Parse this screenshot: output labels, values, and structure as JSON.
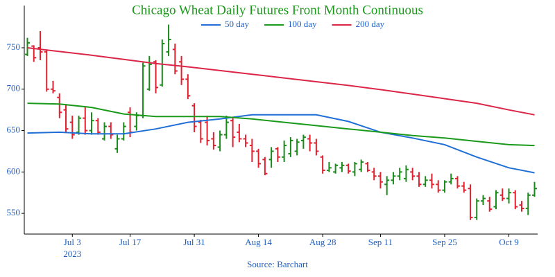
{
  "chart_data": {
    "type": "ohlc",
    "title": "Chicago Wheat Daily Futures Front Month Continuous",
    "source": "Source: Barchart",
    "x_year": "2023",
    "legend": "top",
    "up_color": "#1a8a1a",
    "down_color": "#e0202e",
    "ylim": [
      525,
      801
    ],
    "yticks": [
      550,
      600,
      650,
      700,
      750
    ],
    "xticks": [
      {
        "value": "2023-07-03",
        "label": "Jul 3"
      },
      {
        "value": "2023-07-17",
        "label": "Jul 17"
      },
      {
        "value": "2023-07-31",
        "label": "Jul 31"
      },
      {
        "value": "2023-08-14",
        "label": "Aug 14"
      },
      {
        "value": "2023-08-28",
        "label": "Aug 28"
      },
      {
        "value": "2023-09-11",
        "label": "Sep 11"
      },
      {
        "value": "2023-09-25",
        "label": "Sep 25"
      },
      {
        "value": "2023-10-09",
        "label": "Oct 9"
      }
    ],
    "x": [
      "2023-06-22",
      "2023-06-23",
      "2023-06-26",
      "2023-06-27",
      "2023-06-28",
      "2023-06-29",
      "2023-06-30",
      "2023-07-03",
      "2023-07-05",
      "2023-07-06",
      "2023-07-07",
      "2023-07-10",
      "2023-07-11",
      "2023-07-12",
      "2023-07-13",
      "2023-07-14",
      "2023-07-17",
      "2023-07-18",
      "2023-07-19",
      "2023-07-20",
      "2023-07-21",
      "2023-07-24",
      "2023-07-25",
      "2023-07-26",
      "2023-07-27",
      "2023-07-28",
      "2023-07-31",
      "2023-08-01",
      "2023-08-02",
      "2023-08-03",
      "2023-08-04",
      "2023-08-07",
      "2023-08-08",
      "2023-08-09",
      "2023-08-10",
      "2023-08-11",
      "2023-08-14",
      "2023-08-15",
      "2023-08-16",
      "2023-08-17",
      "2023-08-18",
      "2023-08-21",
      "2023-08-22",
      "2023-08-23",
      "2023-08-24",
      "2023-08-25",
      "2023-08-28",
      "2023-08-29",
      "2023-08-30",
      "2023-08-31",
      "2023-09-01",
      "2023-09-05",
      "2023-09-06",
      "2023-09-07",
      "2023-09-08",
      "2023-09-11",
      "2023-09-12",
      "2023-09-13",
      "2023-09-14",
      "2023-09-15",
      "2023-09-18",
      "2023-09-19",
      "2023-09-20",
      "2023-09-21",
      "2023-09-22",
      "2023-09-25",
      "2023-09-26",
      "2023-09-27",
      "2023-09-28",
      "2023-09-29",
      "2023-10-02",
      "2023-10-03",
      "2023-10-04",
      "2023-10-05",
      "2023-10-06",
      "2023-10-09",
      "2023-10-10",
      "2023-10-11",
      "2023-10-12",
      "2023-10-13"
    ],
    "open": [
      742,
      752,
      750,
      745,
      700,
      690,
      675,
      660,
      648,
      665,
      650,
      662,
      640,
      655,
      628,
      640,
      672,
      655,
      668,
      700,
      733,
      705,
      745,
      748,
      733,
      712,
      680,
      660,
      660,
      640,
      630,
      645,
      662,
      648,
      640,
      632,
      625,
      615,
      615,
      628,
      618,
      622,
      625,
      638,
      640,
      635,
      618,
      602,
      600,
      605,
      608,
      600,
      603,
      610,
      600,
      595,
      585,
      590,
      595,
      592,
      600,
      595,
      585,
      590,
      585,
      578,
      588,
      592,
      583,
      580,
      545,
      565,
      565,
      558,
      572,
      568,
      575,
      560,
      556,
      572
    ],
    "high": [
      762,
      753,
      770,
      748,
      710,
      695,
      682,
      668,
      668,
      678,
      672,
      665,
      660,
      660,
      645,
      660,
      678,
      672,
      732,
      740,
      735,
      760,
      778,
      755,
      740,
      718,
      683,
      663,
      668,
      648,
      650,
      668,
      665,
      658,
      645,
      640,
      628,
      618,
      630,
      630,
      638,
      642,
      640,
      645,
      645,
      640,
      620,
      612,
      610,
      612,
      610,
      612,
      615,
      612,
      605,
      600,
      595,
      600,
      605,
      608,
      605,
      600,
      595,
      598,
      590,
      590,
      598,
      595,
      588,
      585,
      568,
      572,
      570,
      578,
      580,
      580,
      578,
      565,
      575,
      588
    ],
    "low": [
      740,
      733,
      735,
      697,
      695,
      665,
      648,
      640,
      645,
      645,
      645,
      645,
      638,
      640,
      623,
      638,
      642,
      650,
      665,
      698,
      695,
      703,
      740,
      718,
      705,
      688,
      648,
      635,
      632,
      627,
      625,
      640,
      630,
      636,
      630,
      612,
      605,
      596,
      605,
      612,
      612,
      618,
      620,
      628,
      625,
      620,
      598,
      600,
      598,
      600,
      598,
      595,
      600,
      600,
      590,
      580,
      572,
      585,
      590,
      588,
      590,
      582,
      582,
      580,
      575,
      575,
      585,
      580,
      575,
      542,
      542,
      560,
      552,
      555,
      565,
      562,
      555,
      552,
      548,
      570
    ],
    "close": [
      756,
      738,
      745,
      700,
      698,
      672,
      652,
      645,
      665,
      650,
      662,
      648,
      655,
      645,
      640,
      655,
      648,
      668,
      728,
      730,
      702,
      755,
      760,
      722,
      712,
      692,
      655,
      640,
      638,
      632,
      645,
      660,
      642,
      640,
      635,
      625,
      610,
      598,
      625,
      618,
      632,
      638,
      636,
      642,
      635,
      625,
      602,
      605,
      608,
      608,
      601,
      610,
      612,
      602,
      595,
      588,
      590,
      595,
      600,
      603,
      595,
      585,
      590,
      585,
      578,
      588,
      592,
      583,
      578,
      545,
      565,
      568,
      555,
      575,
      568,
      575,
      558,
      556,
      572,
      580
    ],
    "series": [
      {
        "name": "50 day",
        "color": "#1f6fd6",
        "x": [
          "2023-06-22",
          "2023-06-29",
          "2023-07-07",
          "2023-07-14",
          "2023-07-21",
          "2023-07-28",
          "2023-08-04",
          "2023-08-11",
          "2023-08-18",
          "2023-08-25",
          "2023-09-01",
          "2023-09-11",
          "2023-09-18",
          "2023-09-25",
          "2023-10-02",
          "2023-10-09",
          "2023-10-13"
        ],
        "values": [
          647,
          648,
          646,
          646,
          652,
          660,
          664,
          669,
          669,
          669,
          661,
          648,
          641,
          633,
          618,
          605,
          599
        ]
      },
      {
        "name": "100 day",
        "color": "#1a9a1a",
        "x": [
          "2023-06-22",
          "2023-06-29",
          "2023-07-07",
          "2023-07-14",
          "2023-07-21",
          "2023-07-28",
          "2023-08-04",
          "2023-08-11",
          "2023-08-18",
          "2023-08-25",
          "2023-09-01",
          "2023-09-11",
          "2023-09-18",
          "2023-09-25",
          "2023-10-02",
          "2023-10-09",
          "2023-10-13"
        ],
        "values": [
          683,
          682,
          678,
          670,
          667,
          667,
          667,
          664,
          660,
          656,
          652,
          648,
          644,
          641,
          637,
          633,
          632
        ]
      },
      {
        "name": "200 day",
        "color": "#dc2648",
        "x": [
          "2023-06-22",
          "2023-06-29",
          "2023-07-07",
          "2023-07-14",
          "2023-07-21",
          "2023-07-28",
          "2023-08-04",
          "2023-08-11",
          "2023-08-18",
          "2023-08-25",
          "2023-09-01",
          "2023-09-11",
          "2023-09-18",
          "2023-09-25",
          "2023-10-02",
          "2023-10-09",
          "2023-10-13"
        ],
        "values": [
          750,
          745.5,
          741,
          736,
          731,
          727,
          722.5,
          718,
          713.5,
          709,
          704.5,
          699.5,
          694,
          688.5,
          683,
          675,
          669
        ]
      }
    ]
  }
}
